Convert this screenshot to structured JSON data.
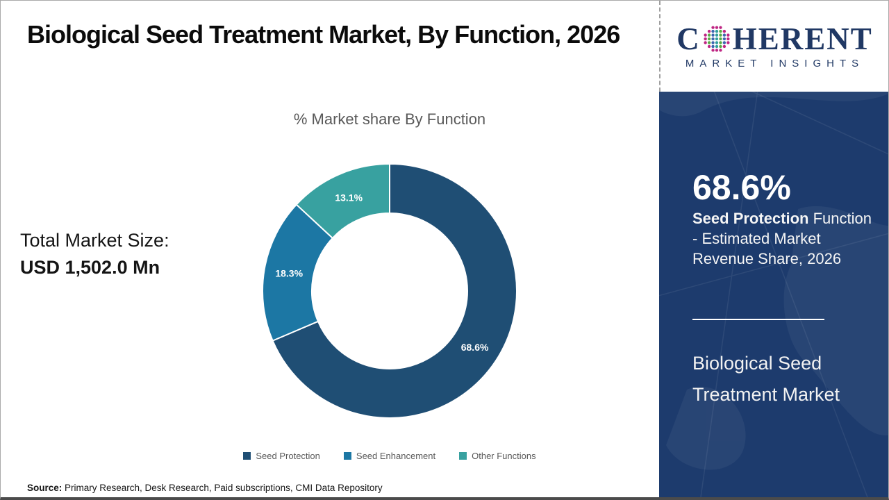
{
  "page": {
    "title": "Biological Seed Treatment Market, By Function, 2026",
    "total_market_label": "Total Market Size:",
    "total_market_value": "USD 1,502.0 Mn",
    "source_label": "Source:",
    "source_text": " Primary Research, Desk Research, Paid subscriptions, CMI Data Repository"
  },
  "chart_data": {
    "type": "pie",
    "variant": "donut",
    "title": "% Market share By Function",
    "categories": [
      "Seed Protection",
      "Seed Enhancement",
      "Other Functions"
    ],
    "values": [
      68.6,
      18.3,
      13.1
    ],
    "data_labels": [
      "68.6%",
      "18.3%",
      "13.1%"
    ],
    "colors": [
      "#1f4e74",
      "#1c77a4",
      "#38a1a0"
    ],
    "data_label_color": "#ffffff",
    "start_angle_deg": 0,
    "direction": "clockwise",
    "inner_radius_ratio": 0.61,
    "legend_position": "bottom",
    "slice_separator_color": "#ffffff"
  },
  "sidebar": {
    "background_color": "#1d3b6d",
    "stat_value": "68.6%",
    "stat_bold": "Seed Protection",
    "stat_rest": " Function - Estimated Market Revenue Share, 2026",
    "market_name": "Biological Seed Treatment Market"
  },
  "logo": {
    "brand_first": "C",
    "brand_rest": "HERENT",
    "tagline": "MARKET INSIGHTS",
    "brand_color": "#203864",
    "globe_colors": [
      "#bf2583",
      "#2f9e9e",
      "#56ab45",
      "#3b67ae"
    ]
  }
}
